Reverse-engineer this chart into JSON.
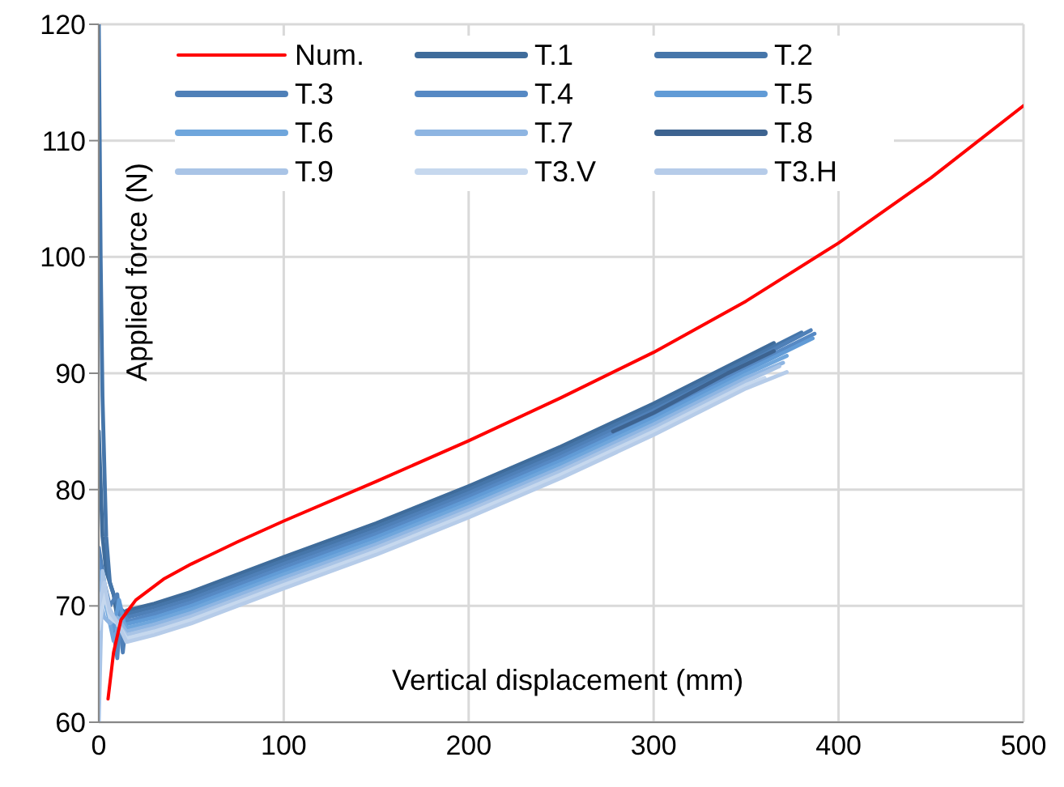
{
  "chart_data": {
    "type": "line",
    "xlabel": "Vertical displacement (mm)",
    "ylabel": "Applied force (N)",
    "xlim": [
      0,
      500
    ],
    "ylim": [
      60,
      120
    ],
    "xticks": [
      0,
      100,
      200,
      300,
      400,
      500
    ],
    "yticks": [
      60,
      70,
      80,
      90,
      100,
      110,
      120
    ],
    "grid": true,
    "legend": "top",
    "marker": "none",
    "line_style": "solid",
    "series": [
      {
        "name": "Num.",
        "color": "#ff0000",
        "x": [
          5,
          8,
          12,
          20,
          35,
          50,
          75,
          100,
          150,
          200,
          250,
          300,
          350,
          400,
          450,
          500
        ],
        "values": [
          62,
          66,
          68.8,
          70.5,
          72.3,
          73.6,
          75.5,
          77.3,
          80.7,
          84.2,
          87.9,
          91.8,
          96.2,
          101.2,
          106.8,
          113
        ]
      },
      {
        "name": "T.1",
        "color": "#3f6c9b",
        "x": [
          0,
          2,
          4,
          8,
          12,
          15,
          30,
          50,
          100,
          150,
          200,
          250,
          300,
          350,
          365
        ],
        "values": [
          85,
          76,
          73,
          71,
          67,
          69.6,
          70.2,
          71.2,
          74.2,
          77.1,
          80.3,
          83.7,
          87.4,
          91.4,
          92.6
        ]
      },
      {
        "name": "T.2",
        "color": "#4676aa",
        "x": [
          0,
          1,
          2,
          4,
          6,
          10,
          15,
          30,
          50,
          100,
          150,
          200,
          250,
          300,
          350,
          380
        ],
        "values": [
          120,
          100,
          88,
          76,
          72,
          70,
          69.3,
          69.9,
          70.9,
          73.9,
          76.8,
          80,
          83.4,
          87.1,
          91.1,
          93.5
        ]
      },
      {
        "name": "T.3",
        "color": "#4f80b8",
        "x": [
          0,
          3,
          6,
          10,
          13,
          15,
          30,
          50,
          100,
          150,
          200,
          250,
          300,
          350,
          385
        ],
        "values": [
          75,
          72,
          70,
          71,
          66,
          69,
          69.6,
          70.6,
          73.6,
          76.5,
          79.7,
          83.1,
          86.8,
          90.8,
          93.7
        ]
      },
      {
        "name": "T.4",
        "color": "#5689c4",
        "x": [
          0,
          3,
          7,
          10,
          12,
          16,
          30,
          50,
          100,
          150,
          200,
          250,
          300,
          350,
          387
        ],
        "values": [
          74,
          71,
          69,
          65.5,
          69.5,
          68.7,
          69.3,
          70.3,
          73.3,
          76.2,
          79.4,
          82.8,
          86.5,
          90.5,
          93.4
        ]
      },
      {
        "name": "T.5",
        "color": "#619bd6",
        "x": [
          0,
          4,
          8,
          11,
          14,
          30,
          50,
          100,
          150,
          200,
          250,
          300,
          350,
          386
        ],
        "values": [
          73,
          70,
          68,
          70.5,
          68.4,
          69,
          70,
          73,
          75.9,
          79.1,
          82.5,
          86.2,
          90.2,
          93
        ]
      },
      {
        "name": "T.6",
        "color": "#6fa6dc",
        "x": [
          0,
          4,
          8,
          12,
          15,
          30,
          50,
          100,
          150,
          200,
          250,
          300,
          350,
          372
        ],
        "values": [
          72,
          70,
          67,
          69,
          68.1,
          68.7,
          69.7,
          72.7,
          75.6,
          78.8,
          82.2,
          85.9,
          89.9,
          91.5
        ]
      },
      {
        "name": "T.7",
        "color": "#8eb5e2",
        "x": [
          0,
          3,
          6,
          10,
          15,
          30,
          50,
          100,
          150,
          200,
          250,
          300,
          350,
          370
        ],
        "values": [
          71,
          69,
          68.5,
          69,
          67.8,
          68.4,
          69.4,
          72.4,
          75.3,
          78.5,
          81.9,
          85.6,
          89.6,
          90.9
        ]
      },
      {
        "name": "T.8",
        "color": "#3d6390",
        "x": [
          278,
          300,
          320,
          340,
          365
        ],
        "values": [
          85,
          86.6,
          88.3,
          90,
          91.9
        ]
      },
      {
        "name": "T.9",
        "color": "#a9c4e6",
        "x": [
          0,
          2,
          5,
          10,
          15,
          30,
          50,
          100,
          150,
          200,
          250,
          300,
          350,
          368
        ],
        "values": [
          60,
          73,
          70,
          68.5,
          67.5,
          68.1,
          69.1,
          72.1,
          75,
          78.2,
          81.6,
          85.3,
          89.3,
          90.6
        ]
      },
      {
        "name": "T3.V",
        "color": "#c6d8ee",
        "x": [
          0,
          3,
          6,
          10,
          15,
          30,
          50,
          100,
          150,
          200,
          250,
          300,
          350,
          360
        ],
        "values": [
          68,
          71,
          69,
          68.5,
          67.2,
          67.8,
          68.8,
          71.8,
          74.7,
          77.9,
          81.3,
          85,
          89,
          89.6
        ]
      },
      {
        "name": "T3.H",
        "color": "#b6cce9",
        "x": [
          0,
          3,
          6,
          10,
          15,
          30,
          50,
          100,
          150,
          200,
          250,
          300,
          350,
          372
        ],
        "values": [
          70,
          72,
          69.5,
          68.6,
          66.9,
          67.5,
          68.5,
          71.5,
          74.4,
          77.6,
          81,
          84.7,
          88.7,
          90.1
        ]
      }
    ]
  }
}
